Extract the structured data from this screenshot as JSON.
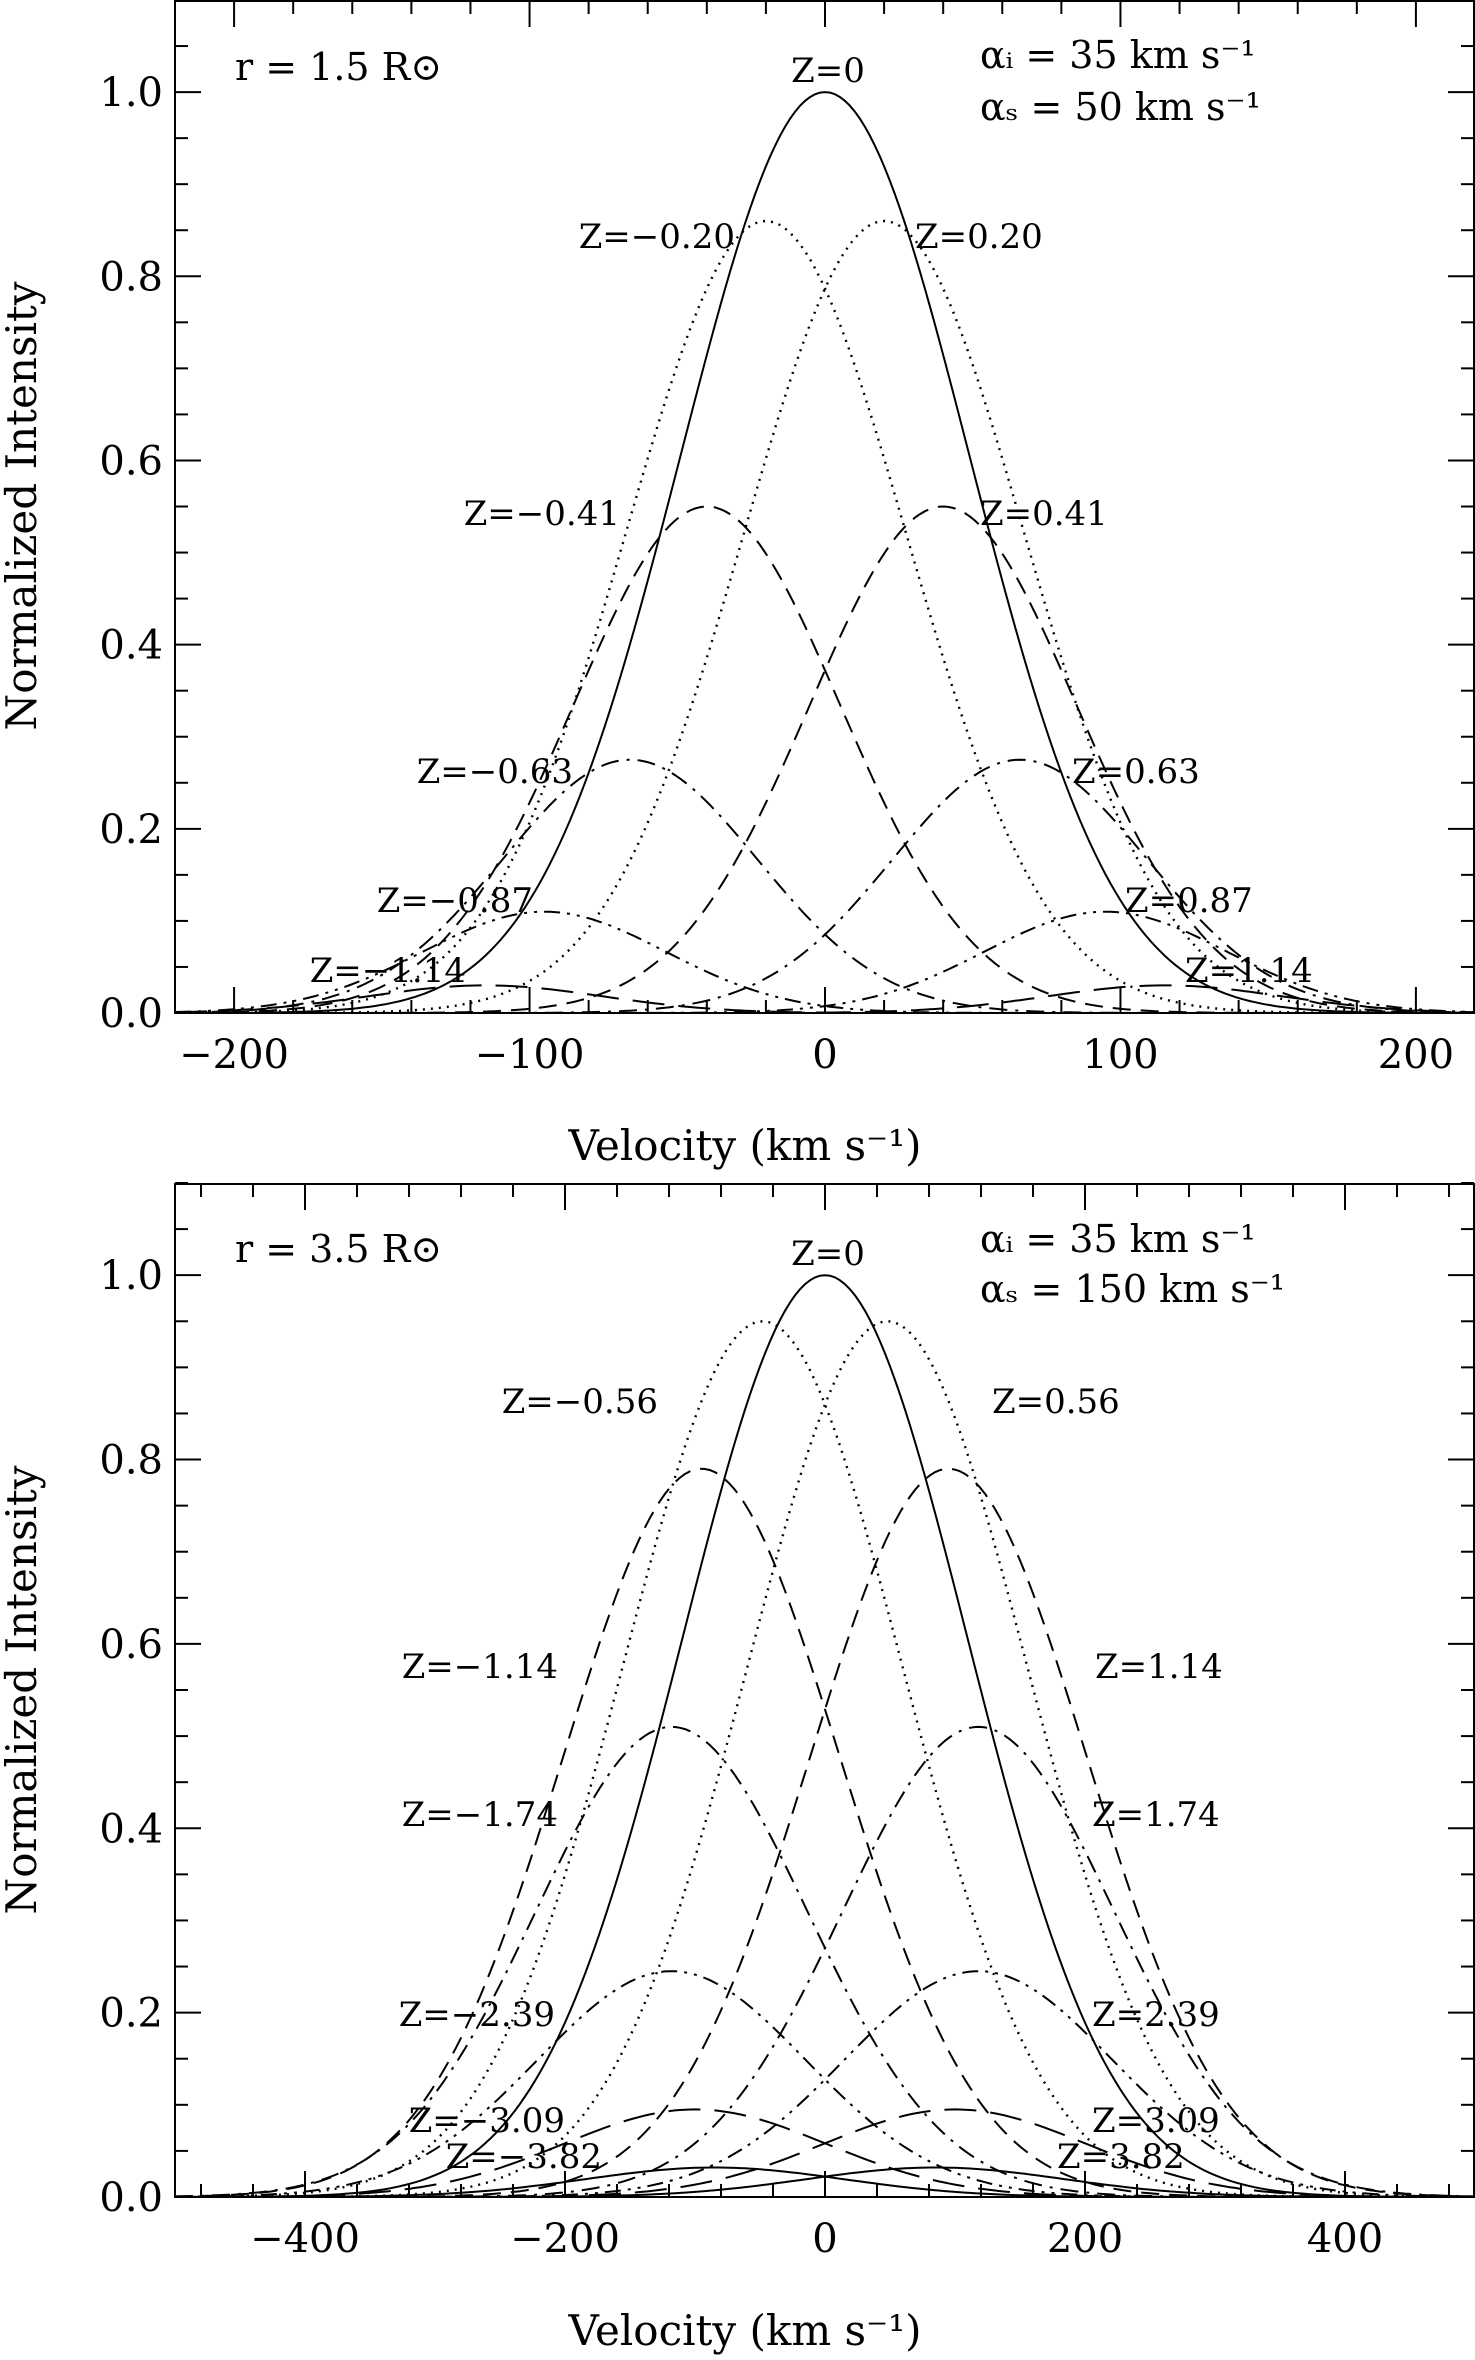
{
  "chart_data": [
    {
      "type": "line",
      "xlabel": "Velocity (km s⁻¹)",
      "ylabel": "Normalized Intensity",
      "xlim": [
        -220,
        220
      ],
      "ylim": [
        0,
        1.1
      ],
      "xticks": [
        -200,
        -100,
        0,
        100,
        200
      ],
      "xtick_labels": [
        "−200",
        "−100",
        "0",
        "100",
        "200"
      ],
      "yticks": [
        0.0,
        0.2,
        0.4,
        0.6,
        0.8,
        1.0
      ],
      "ytick_labels": [
        "0.0",
        "0.2",
        "0.4",
        "0.6",
        "0.8",
        "1.0"
      ],
      "corner_left": "r = 1.5 R⊙",
      "corner_right_1": "αᵢ = 35 km s⁻¹",
      "corner_right_2": "αₛ = 50 km s⁻¹",
      "series": [
        {
          "label": "Z=0",
          "center": 0,
          "peak": 1.0,
          "width": 69,
          "style": "solid"
        },
        {
          "label": "Z=−0.20",
          "center": -20,
          "peak": 0.86,
          "width": 67,
          "style": "dotted"
        },
        {
          "label": "Z=0.20",
          "center": 20,
          "peak": 0.86,
          "width": 67,
          "style": "dotted"
        },
        {
          "label": "Z=−0.41",
          "center": -40,
          "peak": 0.55,
          "width": 64,
          "style": "dashed"
        },
        {
          "label": "Z=0.41",
          "center": 40,
          "peak": 0.55,
          "width": 64,
          "style": "dashed"
        },
        {
          "label": "Z=−0.63",
          "center": -66,
          "peak": 0.275,
          "width": 61,
          "style": "dashdot"
        },
        {
          "label": "Z=0.63",
          "center": 66,
          "peak": 0.275,
          "width": 61,
          "style": "dashdot"
        },
        {
          "label": "Z=−0.87",
          "center": -95,
          "peak": 0.11,
          "width": 58,
          "style": "dashdotdot"
        },
        {
          "label": "Z=0.87",
          "center": 95,
          "peak": 0.11,
          "width": 58,
          "style": "dashdotdot"
        },
        {
          "label": "Z=−1.14",
          "center": -115,
          "peak": 0.03,
          "width": 56,
          "style": "longdash"
        },
        {
          "label": "Z=1.14",
          "center": 115,
          "peak": 0.03,
          "width": 56,
          "style": "longdash"
        }
      ]
    },
    {
      "type": "line",
      "xlabel": "Velocity (km s⁻¹)",
      "ylabel": "Normalized Intensity",
      "xlim": [
        -500,
        500
      ],
      "ylim": [
        0,
        1.1
      ],
      "xticks": [
        -400,
        -200,
        0,
        200,
        400
      ],
      "xtick_labels": [
        "−400",
        "−200",
        "0",
        "200",
        "400"
      ],
      "yticks": [
        0.0,
        0.2,
        0.4,
        0.6,
        0.8,
        1.0
      ],
      "ytick_labels": [
        "0.0",
        "0.2",
        "0.4",
        "0.6",
        "0.8",
        "1.0"
      ],
      "corner_left": "r = 3.5 R⊙",
      "corner_right_1": "αᵢ =  35 km s⁻¹",
      "corner_right_2": "αₛ = 150 km s⁻¹",
      "series": [
        {
          "label": "Z=0",
          "center": 0,
          "peak": 1.0,
          "width": 155,
          "style": "solid"
        },
        {
          "label": "Z=−0.56",
          "center": -48,
          "peak": 0.95,
          "width": 152,
          "style": "dotted"
        },
        {
          "label": "Z=0.56",
          "center": 48,
          "peak": 0.95,
          "width": 152,
          "style": "dotted"
        },
        {
          "label": "Z=−1.14",
          "center": -95,
          "peak": 0.79,
          "width": 150,
          "style": "dashed"
        },
        {
          "label": "Z=1.14",
          "center": 95,
          "peak": 0.79,
          "width": 150,
          "style": "dashed"
        },
        {
          "label": "Z=−1.74",
          "center": -118,
          "peak": 0.51,
          "width": 148,
          "style": "dashdot"
        },
        {
          "label": "Z=1.74",
          "center": 118,
          "peak": 0.51,
          "width": 148,
          "style": "dashdot"
        },
        {
          "label": "Z=−2.39",
          "center": -118,
          "peak": 0.245,
          "width": 146,
          "style": "dashdotdot"
        },
        {
          "label": "Z=2.39",
          "center": 118,
          "peak": 0.245,
          "width": 146,
          "style": "dashdotdot"
        },
        {
          "label": "Z=−3.09",
          "center": -100,
          "peak": 0.095,
          "width": 143,
          "style": "longdash"
        },
        {
          "label": "Z=3.09",
          "center": 100,
          "peak": 0.095,
          "width": 143,
          "style": "longdash"
        },
        {
          "label": "Z=−3.82",
          "center": -85,
          "peak": 0.032,
          "width": 140,
          "style": "solid"
        },
        {
          "label": "Z=3.82",
          "center": 85,
          "peak": 0.032,
          "width": 140,
          "style": "solid"
        }
      ]
    }
  ]
}
